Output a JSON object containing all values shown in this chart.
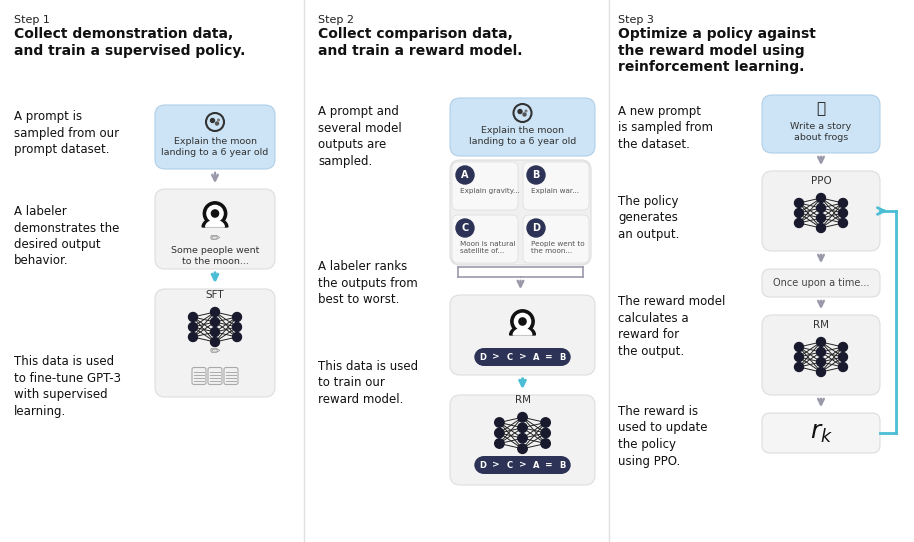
{
  "bg_color": "#ffffff",
  "fig_width": 9.14,
  "fig_height": 5.42,
  "dpi": 100,
  "step1": {
    "step_label": "Step 1",
    "title": "Collect demonstration data,\nand train a supervised policy.",
    "desc1": "A prompt is\nsampled from our\nprompt dataset.",
    "desc2": "A labeler\ndemonstrates the\ndesired output\nbehavior.",
    "desc3": "This data is used\nto fine-tune GPT-3\nwith supervised\nlearning.",
    "box1_text": "Explain the moon\nlanding to a 6 year old",
    "box2_text": "Some people went\nto the moon...",
    "box3_label": "SFT",
    "box1_color": "#cce4f6",
    "box2_color": "#f2f2f2",
    "box3_color": "#f2f2f2"
  },
  "step2": {
    "step_label": "Step 2",
    "title": "Collect comparison data,\nand train a reward model.",
    "desc1": "A prompt and\nseveral model\noutputs are\nsampled.",
    "desc2": "A labeler ranks\nthe outputs from\nbest to worst.",
    "desc3": "This data is used\nto train our\nreward model.",
    "box1_text": "Explain the moon\nlanding to a 6 year old",
    "box1_color": "#cce4f6",
    "box2_color": "#f2f2f2",
    "box3_color": "#f2f2f2",
    "box3_label": "RM"
  },
  "step3": {
    "step_label": "Step 3",
    "title": "Optimize a policy against\nthe reward model using\nreinforcement learning.",
    "desc1": "A new prompt\nis sampled from\nthe dataset.",
    "desc2": "The policy\ngenerates\nan output.",
    "desc3": "The reward model\ncalculates a\nreward for\nthe output.",
    "desc4": "The reward is\nused to update\nthe policy\nusing PPO.",
    "box1_text": "Write a story\nabout frogs",
    "box1_color": "#cce4f6",
    "box2_label": "PPO",
    "box2_color": "#f2f2f2",
    "box3_text": "Once upon a time...",
    "box3_color": "#f2f2f2",
    "box4_label": "RM",
    "box4_color": "#f2f2f2"
  },
  "divider_color": "#e0e0e0",
  "arrow_gray": "#999999",
  "arrow_blue": "#4bbdd4",
  "text_dark": "#111111",
  "node_color": "#1a1a2e",
  "dark_pill": "#2d3356"
}
